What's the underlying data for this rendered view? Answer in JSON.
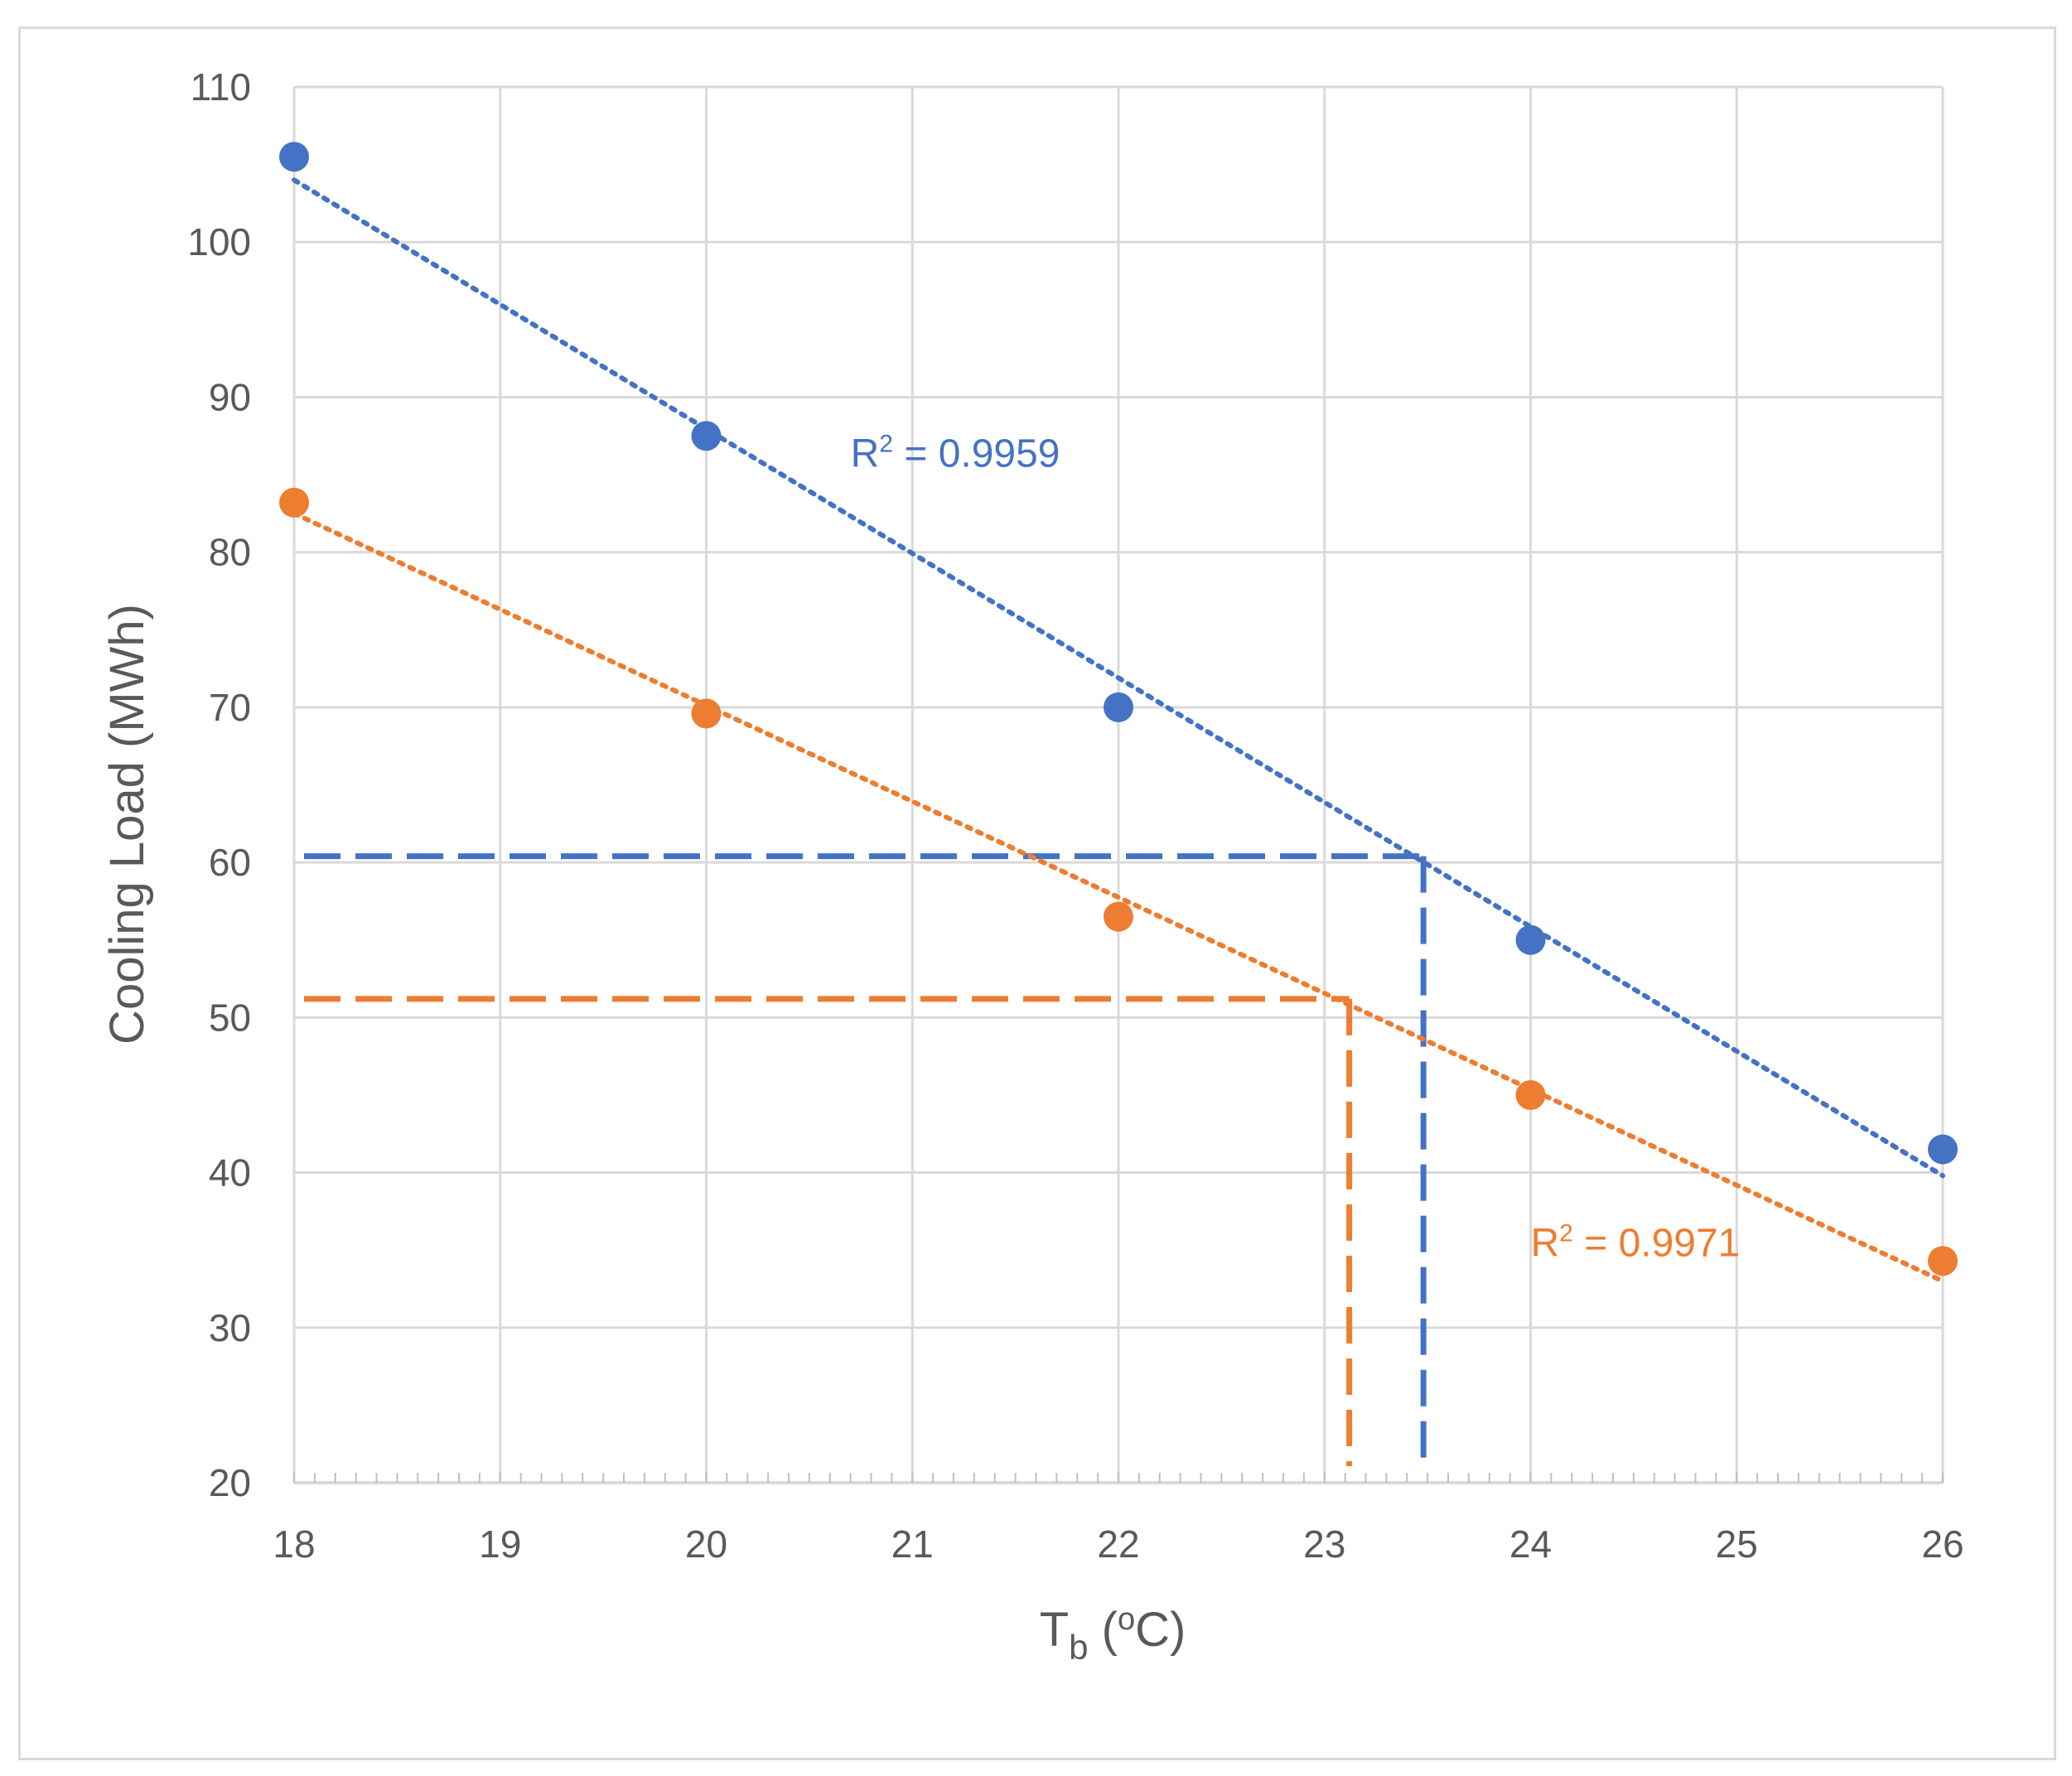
{
  "chart_data": {
    "type": "scatter",
    "title": "",
    "xlabel": "T",
    "xlabel_subscript": "b",
    "xlabel_suffix": " (",
    "xlabel_superscript": "o",
    "xlabel_unit": "C)",
    "ylabel": "Cooling Load (MWh)",
    "xlim": [
      18,
      26
    ],
    "ylim": [
      20,
      110
    ],
    "x_ticks": [
      "18",
      "19",
      "20",
      "21",
      "22",
      "23",
      "24",
      "25",
      "26"
    ],
    "y_ticks": [
      "20",
      "30",
      "40",
      "50",
      "60",
      "70",
      "80",
      "90",
      "100",
      "110"
    ],
    "grid": true,
    "series": [
      {
        "color": "#4472c4",
        "x": [
          18,
          20,
          22,
          24,
          26
        ],
        "y": [
          105.5,
          87.5,
          70.0,
          55.0,
          41.5
        ],
        "trendline": {
          "x": [
            18,
            26
          ],
          "y": [
            104.0,
            39.8
          ]
        },
        "r2_prefix": "R",
        "r2_superscript": "2",
        "r2_value": " = 0.9959",
        "r2_anchor": {
          "x": 20.7,
          "y": 85.5
        },
        "marker_line": {
          "x": 23.48,
          "y": 60.4
        }
      },
      {
        "color": "#ed7d31",
        "x": [
          18,
          20,
          22,
          24,
          26
        ],
        "y": [
          83.2,
          69.6,
          56.5,
          45.0,
          34.3
        ],
        "trendline": {
          "x": [
            18,
            26
          ],
          "y": [
            82.5,
            33.0
          ]
        },
        "r2_prefix": "R",
        "r2_superscript": "2",
        "r2_value": " = 0.9971",
        "r2_anchor": {
          "x": 24.0,
          "y": 34.6
        },
        "marker_line": {
          "x": 23.12,
          "y": 51.2
        }
      }
    ]
  }
}
